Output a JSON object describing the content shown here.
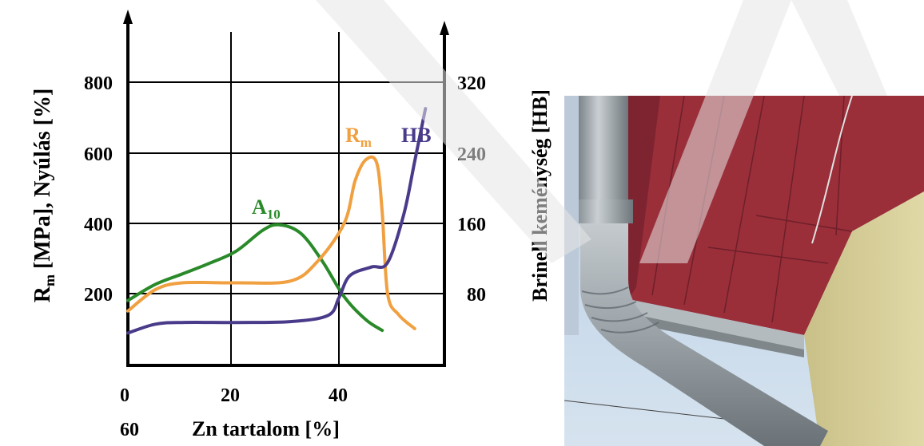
{
  "chart_data": {
    "type": "line",
    "xlabel": "Zn tartalom [%]",
    "x_ticks": [
      "0",
      "20",
      "40"
    ],
    "x_extra_tick": "60",
    "ylabel_left": {
      "main": "R",
      "sub": "m",
      "rest": " [MPa], Nyúlás [%]"
    },
    "ylabel_right": "Brinell keménység [HB]",
    "y_left_ticks": [
      "200",
      "400",
      "600",
      "800"
    ],
    "y_right_ticks": [
      "80",
      "160",
      "240",
      "320"
    ],
    "xlim": [
      0,
      60
    ],
    "ylim_left": [
      0,
      900
    ],
    "ylim_right": [
      0,
      360
    ],
    "grid": true,
    "series": [
      {
        "name": "A",
        "name_sub": "10",
        "color": "#2a8a2a",
        "x": [
          0,
          5,
          10,
          15,
          20,
          25,
          28,
          32,
          36,
          40,
          44,
          47
        ],
        "y": [
          180,
          225,
          255,
          285,
          320,
          380,
          395,
          370,
          290,
          190,
          125,
          95
        ]
      },
      {
        "name": "R",
        "name_sub": "m",
        "color": "#f0a040",
        "x": [
          0,
          5,
          10,
          20,
          30,
          35,
          40,
          42,
          44,
          46,
          47,
          48,
          50,
          53
        ],
        "y": [
          150,
          210,
          230,
          230,
          235,
          290,
          400,
          520,
          580,
          570,
          430,
          200,
          140,
          100
        ],
        "axis": "left"
      },
      {
        "name": "HB",
        "color": "#4a3a8a",
        "x": [
          0,
          5,
          10,
          20,
          30,
          37,
          39,
          41,
          45,
          48,
          51,
          53,
          55
        ],
        "y": [
          35,
          45,
          47,
          47,
          48,
          55,
          75,
          100,
          110,
          115,
          170,
          230,
          290
        ],
        "axis": "right"
      }
    ]
  },
  "photo": {
    "description_icon": "rain-gutter-photo-icon"
  },
  "colors": {
    "axis": "#000000",
    "grid": "#000000",
    "watermark": "#e6e6e6",
    "wall": "#d8cf96",
    "soffit": "#9a2f3a",
    "sky": "#c6d8ea",
    "pipe": "#a9b0b4"
  }
}
